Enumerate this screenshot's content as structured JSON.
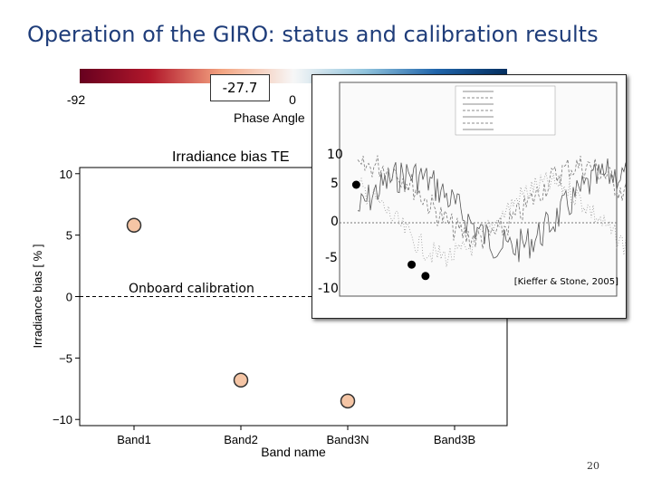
{
  "slide": {
    "title": "Operation of the GIRO: status and calibration results",
    "page_number": "20"
  },
  "colorbar": {
    "tick_labels": [
      "-92",
      "0"
    ],
    "label": "Phase Angle",
    "value_box": "-27.7",
    "gradient_colors": [
      "#67001f",
      "#b2182b",
      "#f4a582",
      "#f7f7f7",
      "#92c5de",
      "#2166ac",
      "#053061"
    ]
  },
  "chart_data": [
    {
      "type": "scatter",
      "title": "Irradiance bias TE",
      "xlabel": "Band name",
      "ylabel": "Irradiance bias [ % ]",
      "categories": [
        "Band1",
        "Band2",
        "Band3N",
        "Band3B"
      ],
      "ylim": [
        -10.5,
        10.5
      ],
      "yticks": [
        -10,
        -5,
        0,
        5,
        10
      ],
      "reference_line": 0,
      "reference_label": "Onboard calibration",
      "marker_color": "#f5c5a5",
      "points": [
        {
          "category": "Band1",
          "value": 5.8
        },
        {
          "category": "Band2",
          "value": -6.8
        },
        {
          "category": "Band3N",
          "value": -8.5
        }
      ]
    },
    {
      "type": "line",
      "axis_labels": [
        "10",
        "5",
        "0",
        "-5",
        "-10"
      ],
      "citation": "[Kieffer & Stone, 2005]",
      "markers": [
        {
          "x": 0.06,
          "y": 5
        },
        {
          "x": 0.26,
          "y": -5.5
        },
        {
          "x": 0.31,
          "y": -7
        }
      ]
    }
  ]
}
